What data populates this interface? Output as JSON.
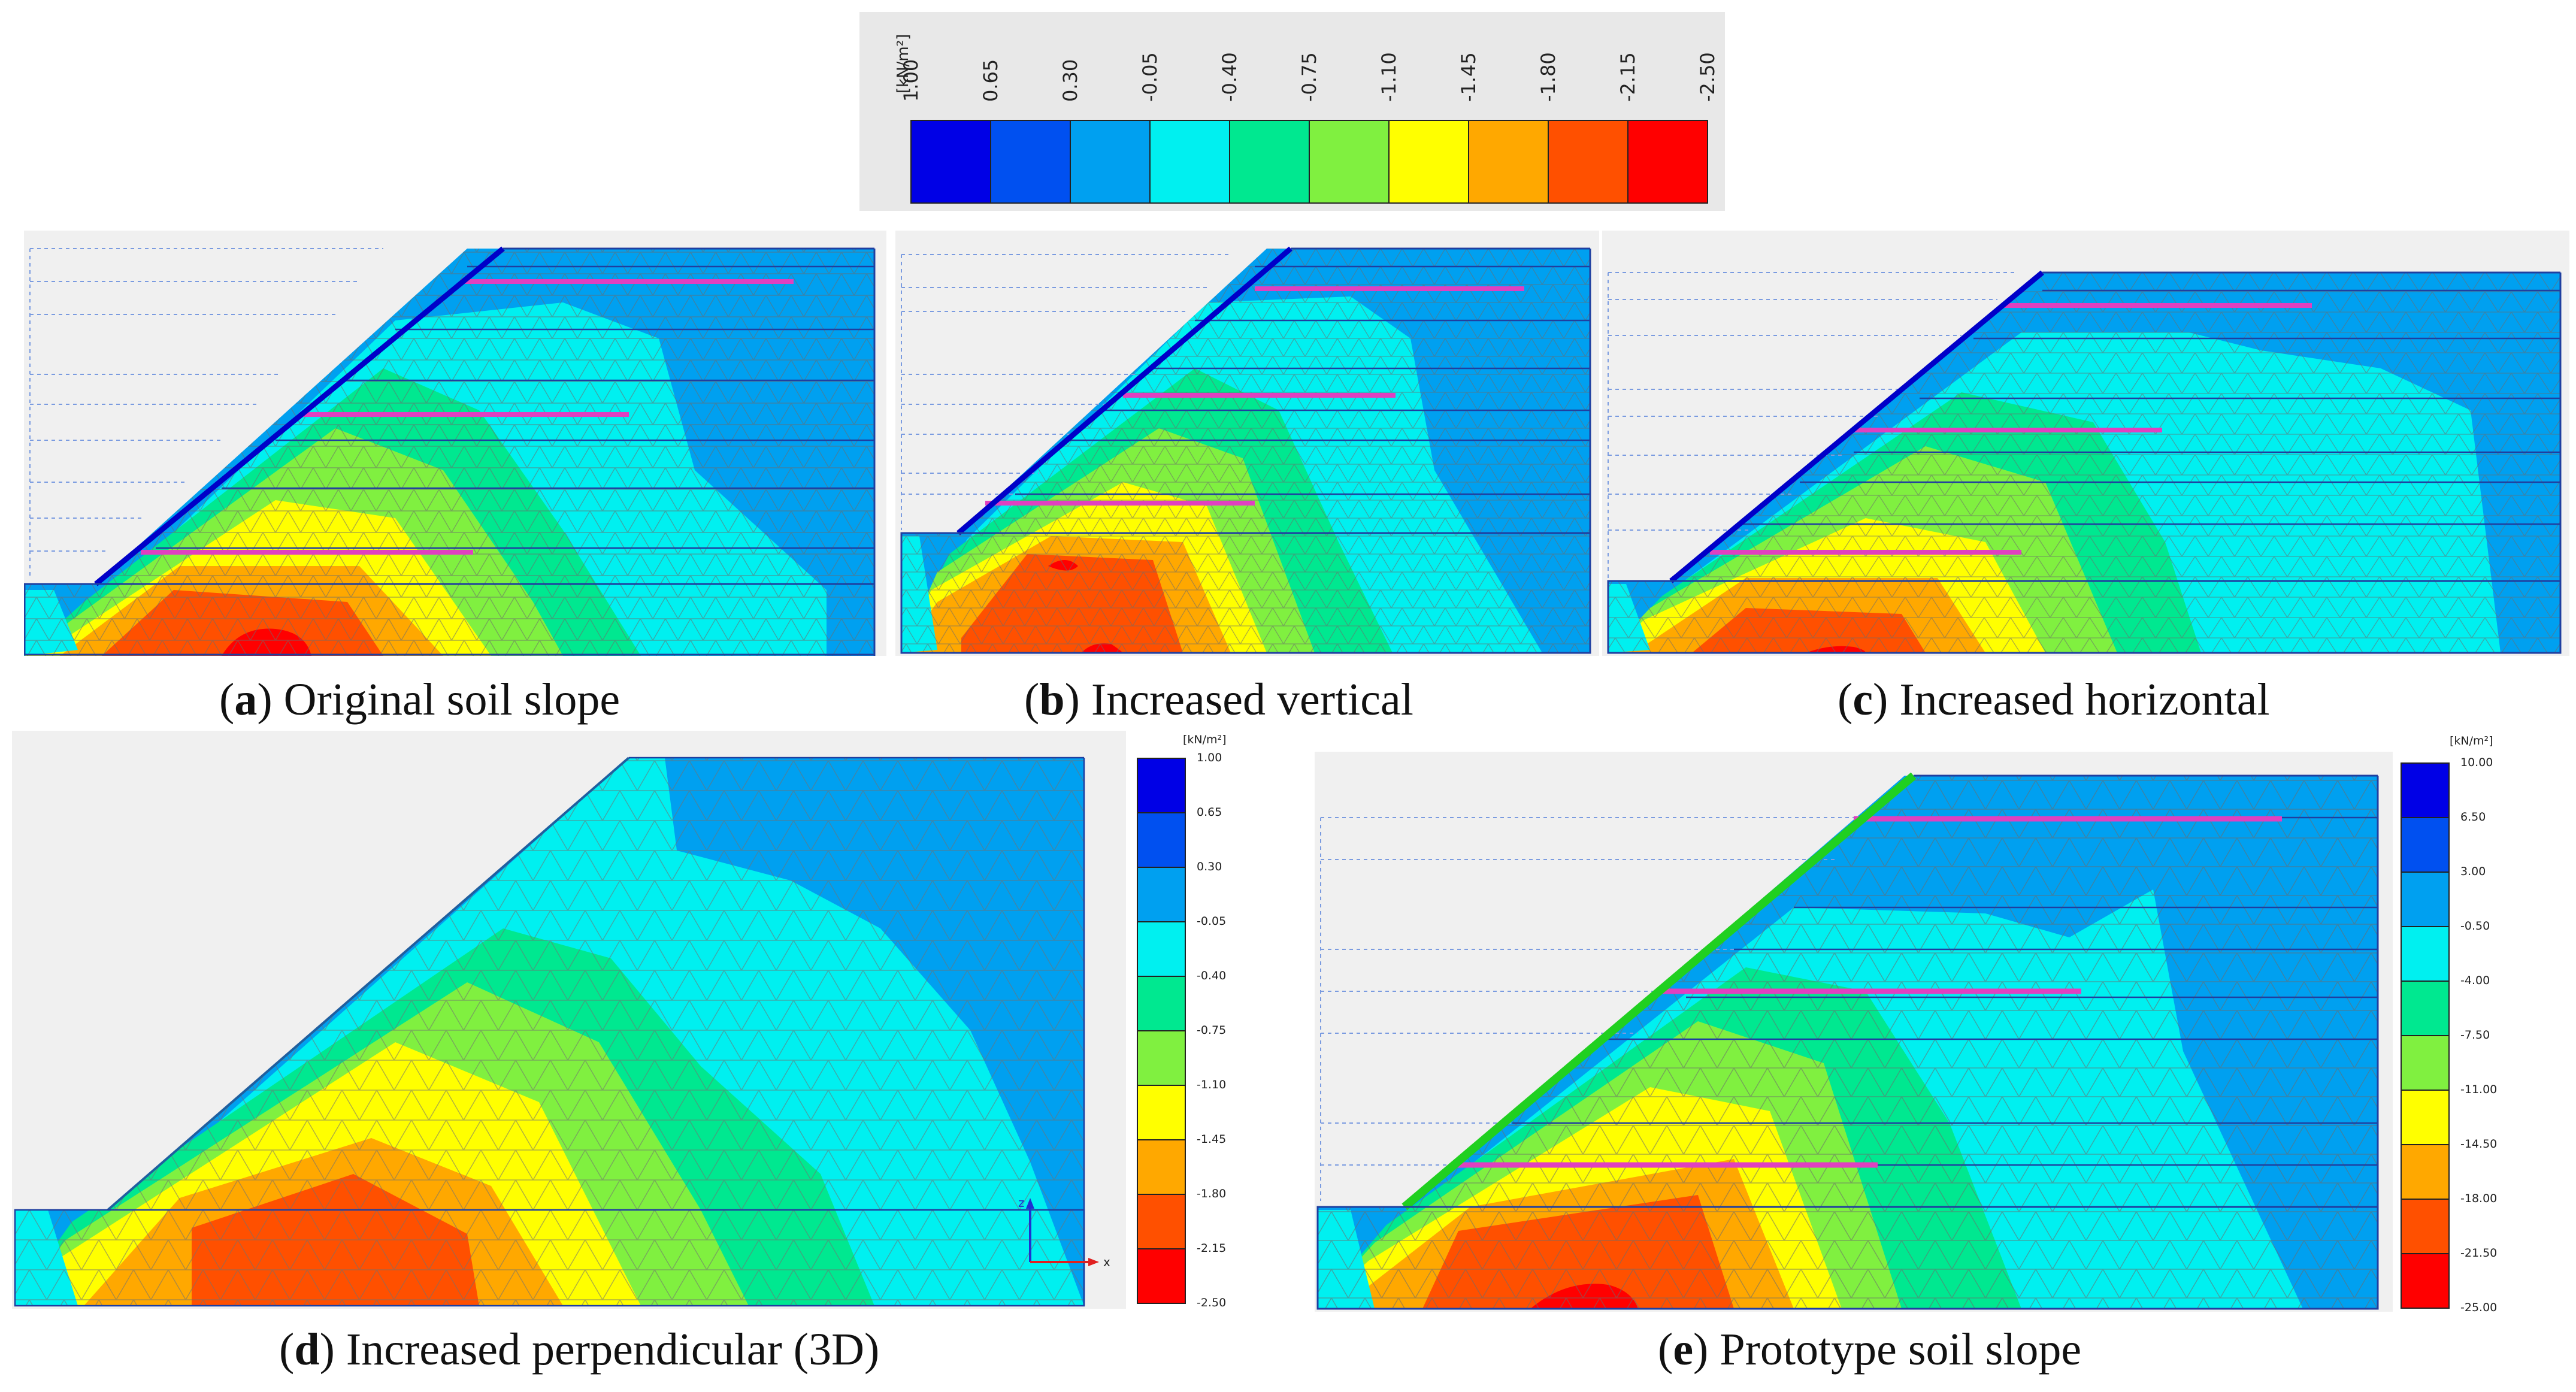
{
  "top_legend": {
    "unit": "[kN/m²]",
    "ticks": [
      "1.00",
      "0.65",
      "0.30",
      "-0.05",
      "-0.40",
      "-0.75",
      "-1.10",
      "-1.45",
      "-1.80",
      "-2.15",
      "-2.50"
    ],
    "colors": [
      "#0000e6",
      "#0050f0",
      "#00a0f0",
      "#00f0f0",
      "#00e890",
      "#80f040",
      "#ffff00",
      "#ffa800",
      "#ff5000",
      "#ff0000"
    ]
  },
  "panels": {
    "a": {
      "letter": "a",
      "caption": ") Original soil slope"
    },
    "b": {
      "letter": "b",
      "caption": ") Increased vertical"
    },
    "c": {
      "letter": "c",
      "caption": ") Increased horizontal"
    },
    "d": {
      "letter": "d",
      "caption": ") Increased perpendicular (3D)"
    },
    "e": {
      "letter": "e",
      "caption": ") Prototype soil slope"
    }
  },
  "legend_d": {
    "unit": "[kN/m²]",
    "ticks": [
      "1.00",
      "0.65",
      "0.30",
      "-0.05",
      "-0.40",
      "-0.75",
      "-1.10",
      "-1.45",
      "-1.80",
      "-2.15",
      "-2.50"
    ]
  },
  "legend_e": {
    "unit": "[kN/m²]",
    "ticks": [
      "10.00",
      "6.50",
      "3.00",
      "-0.50",
      "-4.00",
      "-7.50",
      "-11.00",
      "-14.50",
      "-18.00",
      "-21.50",
      "-25.00"
    ]
  },
  "axis_triad": {
    "z": "z",
    "x": "x"
  }
}
